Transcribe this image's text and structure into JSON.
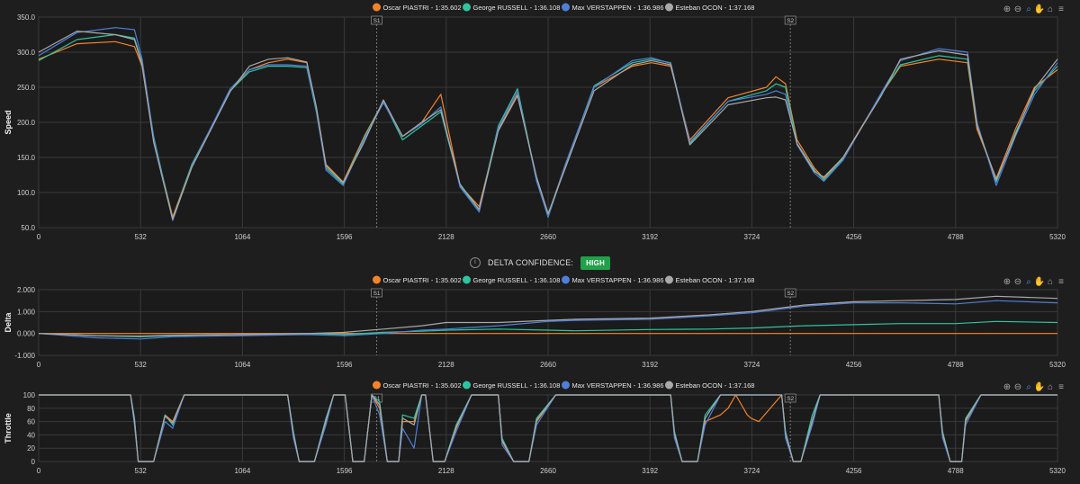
{
  "legend": [
    {
      "name": "Oscar PIASTRI - 1:35.602",
      "color": "#f5832a"
    },
    {
      "name": "George RUSSELL - 1:36.108",
      "color": "#2fc4a0"
    },
    {
      "name": "Max VERSTAPPEN - 1:36.986",
      "color": "#4f7fd9"
    },
    {
      "name": "Esteban OCON - 1:37.168",
      "color": "#a9a9a9"
    }
  ],
  "sector_markers": [
    {
      "label": "S1",
      "x": 1765
    },
    {
      "label": "S2",
      "x": 3925
    }
  ],
  "toolbar_icons": [
    "zoom-in-icon",
    "zoom-out-icon",
    "zoom-selection-icon",
    "pan-icon",
    "reset-home-icon",
    "menu-icon"
  ],
  "delta_confidence": {
    "label": "DELTA CONFIDENCE:",
    "value": "HIGH",
    "badge_color": "#22a04a"
  },
  "chart_data": [
    {
      "type": "line",
      "ylabel": "Speed",
      "xlabel": "",
      "xlim": [
        0,
        5320
      ],
      "ylim": [
        50,
        350
      ],
      "xticks": [
        "0",
        "532",
        "1064",
        "1596",
        "2128",
        "2660",
        "3192",
        "3724",
        "4256",
        "4788",
        "5320"
      ],
      "yticks": [
        "50.0",
        "100.0",
        "150.0",
        "200.0",
        "250.0",
        "300.0",
        "350.0"
      ],
      "x": [
        0,
        200,
        400,
        500,
        540,
        600,
        650,
        700,
        800,
        1000,
        1100,
        1200,
        1300,
        1400,
        1450,
        1500,
        1590,
        1700,
        1800,
        1900,
        2000,
        2100,
        2200,
        2300,
        2400,
        2500,
        2600,
        2660,
        2750,
        2900,
        3100,
        3200,
        3300,
        3400,
        3600,
        3800,
        3850,
        3900,
        3960,
        4050,
        4100,
        4200,
        4400,
        4500,
        4700,
        4850,
        4900,
        5000,
        5100,
        5200,
        5320
      ],
      "series": [
        {
          "name": "Oscar PIASTRI - 1:35.602",
          "color": "#f5832a",
          "values": [
            290,
            312,
            315,
            308,
            280,
            175,
            120,
            65,
            140,
            245,
            275,
            285,
            290,
            285,
            220,
            140,
            115,
            180,
            230,
            180,
            200,
            240,
            110,
            80,
            190,
            240,
            120,
            68,
            140,
            250,
            280,
            285,
            280,
            175,
            235,
            250,
            265,
            255,
            175,
            135,
            120,
            150,
            240,
            280,
            290,
            285,
            190,
            120,
            190,
            250,
            275
          ]
        },
        {
          "name": "George RUSSELL - 1:36.108",
          "color": "#2fc4a0",
          "values": [
            288,
            318,
            325,
            320,
            285,
            180,
            120,
            62,
            140,
            245,
            272,
            280,
            280,
            278,
            215,
            135,
            112,
            178,
            230,
            175,
            195,
            215,
            110,
            75,
            195,
            248,
            118,
            65,
            138,
            252,
            285,
            290,
            285,
            170,
            230,
            245,
            255,
            250,
            170,
            132,
            118,
            148,
            240,
            282,
            295,
            290,
            195,
            115,
            185,
            245,
            280
          ]
        },
        {
          "name": "Max VERSTAPPEN - 1:36.986",
          "color": "#4f7fd9",
          "values": [
            295,
            328,
            335,
            332,
            290,
            178,
            118,
            60,
            138,
            248,
            275,
            282,
            282,
            280,
            218,
            132,
            110,
            176,
            228,
            180,
            198,
            222,
            108,
            72,
            192,
            244,
            116,
            66,
            140,
            250,
            288,
            292,
            284,
            172,
            230,
            240,
            245,
            240,
            168,
            128,
            116,
            146,
            242,
            288,
            305,
            300,
            200,
            110,
            180,
            240,
            285
          ]
        },
        {
          "name": "Esteban OCON - 1:37.168",
          "color": "#a9a9a9",
          "values": [
            300,
            330,
            325,
            318,
            282,
            172,
            116,
            62,
            136,
            244,
            280,
            290,
            292,
            286,
            222,
            138,
            114,
            172,
            232,
            180,
            200,
            218,
            112,
            76,
            188,
            238,
            122,
            70,
            135,
            245,
            282,
            288,
            282,
            168,
            225,
            235,
            236,
            232,
            170,
            130,
            122,
            150,
            238,
            290,
            302,
            296,
            195,
            118,
            182,
            248,
            290
          ]
        }
      ]
    },
    {
      "type": "line",
      "ylabel": "Delta",
      "xlabel": "",
      "xlim": [
        0,
        5320
      ],
      "ylim": [
        -1,
        2
      ],
      "xticks": [
        "0",
        "532",
        "1064",
        "1596",
        "2128",
        "2660",
        "3192",
        "3724",
        "4256",
        "4788",
        "5320"
      ],
      "yticks": [
        "-1.000",
        "0.000",
        "1.000",
        "2.000"
      ],
      "x": [
        0,
        300,
        532,
        700,
        1064,
        1400,
        1596,
        1800,
        2000,
        2128,
        2400,
        2660,
        2800,
        3192,
        3500,
        3724,
        4000,
        4256,
        4500,
        4788,
        5000,
        5320
      ],
      "series": [
        {
          "name": "Oscar PIASTRI - 1:35.602",
          "color": "#f5832a",
          "values": [
            0,
            0,
            0,
            0,
            0,
            0,
            0,
            0,
            0,
            0,
            0,
            0,
            0,
            0,
            0,
            0,
            0,
            0,
            0,
            0,
            0,
            0
          ]
        },
        {
          "name": "George RUSSELL - 1:36.108",
          "color": "#2fc4a0",
          "values": [
            0,
            -0.1,
            -0.15,
            -0.1,
            -0.05,
            0,
            -0.05,
            0.05,
            0.1,
            0.15,
            0.2,
            0.15,
            0.12,
            0.18,
            0.2,
            0.25,
            0.35,
            0.4,
            0.45,
            0.45,
            0.55,
            0.5
          ]
        },
        {
          "name": "Max VERSTAPPEN - 1:36.986",
          "color": "#4f7fd9",
          "values": [
            0,
            -0.2,
            -0.25,
            -0.15,
            -0.1,
            -0.05,
            -0.1,
            0,
            0.15,
            0.2,
            0.35,
            0.55,
            0.6,
            0.65,
            0.8,
            0.95,
            1.25,
            1.4,
            1.4,
            1.35,
            1.5,
            1.4
          ]
        },
        {
          "name": "Esteban OCON - 1:37.168",
          "color": "#a9a9a9",
          "values": [
            0,
            -0.1,
            -0.12,
            -0.08,
            -0.05,
            0,
            0.05,
            0.2,
            0.35,
            0.5,
            0.5,
            0.6,
            0.65,
            0.7,
            0.85,
            1.0,
            1.3,
            1.45,
            1.5,
            1.55,
            1.7,
            1.6
          ]
        }
      ]
    },
    {
      "type": "line",
      "ylabel": "Throttle",
      "xlabel": "",
      "xlim": [
        0,
        5320
      ],
      "ylim": [
        0,
        100
      ],
      "xticks": [
        "0",
        "532",
        "1064",
        "1596",
        "2128",
        "2660",
        "3192",
        "3724",
        "4256",
        "4788",
        "5320"
      ],
      "yticks": [
        "0",
        "20",
        "40",
        "60",
        "80",
        "100"
      ],
      "x": [
        0,
        480,
        500,
        520,
        600,
        660,
        700,
        760,
        800,
        860,
        1300,
        1330,
        1360,
        1440,
        1500,
        1540,
        1600,
        1640,
        1700,
        1740,
        1780,
        1820,
        1880,
        1900,
        1960,
        2000,
        2020,
        2060,
        2120,
        2180,
        2260,
        2400,
        2420,
        2480,
        2560,
        2600,
        2700,
        2800,
        3300,
        3320,
        3360,
        3440,
        3480,
        3560,
        3600,
        3640,
        3700,
        3720,
        3760,
        3880,
        3900,
        3940,
        3980,
        4040,
        4080,
        4120,
        4200,
        4700,
        4720,
        4760,
        4820,
        4840,
        4920,
        4960,
        5320
      ],
      "series": [
        {
          "name": "Oscar PIASTRI - 1:35.602",
          "color": "#f5832a",
          "values": [
            100,
            100,
            60,
            0,
            0,
            70,
            60,
            100,
            100,
            100,
            100,
            40,
            0,
            0,
            60,
            100,
            100,
            0,
            0,
            100,
            80,
            0,
            0,
            60,
            60,
            100,
            100,
            0,
            0,
            50,
            100,
            100,
            30,
            0,
            0,
            60,
            100,
            100,
            100,
            40,
            0,
            0,
            60,
            70,
            80,
            100,
            70,
            65,
            60,
            100,
            40,
            0,
            0,
            60,
            100,
            100,
            100,
            100,
            40,
            0,
            0,
            60,
            100,
            100,
            100
          ]
        },
        {
          "name": "George RUSSELL - 1:36.108",
          "color": "#2fc4a0",
          "values": [
            100,
            100,
            65,
            0,
            0,
            70,
            55,
            100,
            100,
            100,
            100,
            45,
            0,
            0,
            65,
            100,
            100,
            0,
            0,
            100,
            90,
            0,
            0,
            70,
            65,
            100,
            100,
            0,
            0,
            55,
            100,
            100,
            35,
            0,
            0,
            65,
            100,
            100,
            100,
            45,
            0,
            0,
            70,
            100,
            100,
            100,
            100,
            100,
            100,
            100,
            45,
            0,
            0,
            70,
            100,
            100,
            100,
            100,
            45,
            0,
            0,
            65,
            100,
            100,
            100
          ]
        },
        {
          "name": "Max VERSTAPPEN - 1:36.986",
          "color": "#4f7fd9",
          "values": [
            100,
            100,
            55,
            0,
            0,
            60,
            50,
            100,
            100,
            100,
            100,
            35,
            0,
            0,
            55,
            100,
            100,
            0,
            0,
            100,
            70,
            0,
            0,
            50,
            20,
            100,
            100,
            0,
            0,
            45,
            100,
            100,
            25,
            0,
            0,
            55,
            100,
            100,
            100,
            35,
            0,
            0,
            55,
            100,
            100,
            100,
            100,
            100,
            100,
            100,
            35,
            0,
            0,
            55,
            100,
            100,
            100,
            100,
            35,
            0,
            0,
            55,
            100,
            100,
            100
          ]
        },
        {
          "name": "Esteban OCON - 1:37.168",
          "color": "#a9a9a9",
          "values": [
            100,
            100,
            62,
            0,
            0,
            68,
            58,
            100,
            100,
            100,
            100,
            42,
            0,
            0,
            62,
            100,
            100,
            0,
            0,
            100,
            85,
            0,
            0,
            65,
            55,
            100,
            100,
            0,
            0,
            52,
            100,
            100,
            32,
            0,
            0,
            62,
            100,
            100,
            100,
            42,
            0,
            0,
            65,
            100,
            100,
            100,
            100,
            100,
            100,
            100,
            42,
            0,
            0,
            62,
            100,
            100,
            100,
            100,
            42,
            0,
            0,
            62,
            100,
            100,
            100
          ]
        }
      ]
    }
  ]
}
